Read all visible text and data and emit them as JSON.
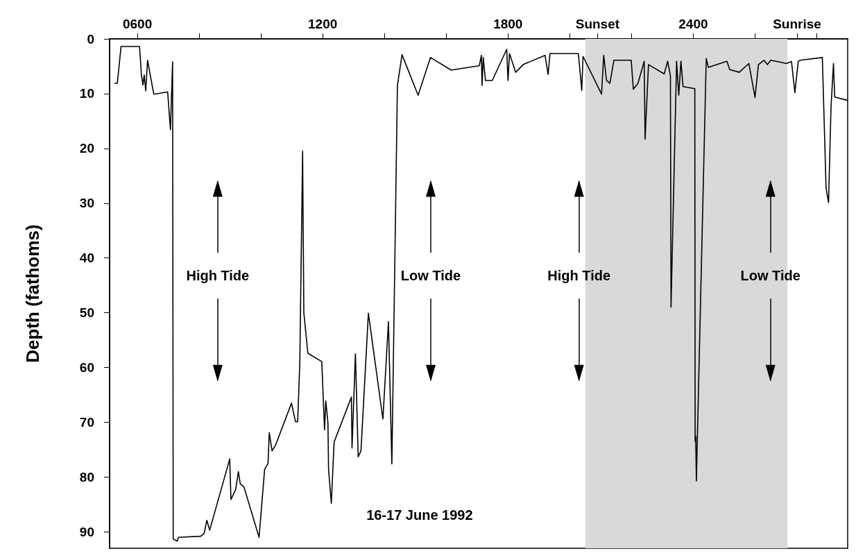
{
  "chart_data": {
    "type": "line",
    "ylabel": "Depth (fathoms)",
    "xlim": [
      510,
      2900
    ],
    "xticks": [
      {
        "value": 600,
        "label": "0600"
      },
      {
        "value": 800,
        "label": null
      },
      {
        "value": 1000,
        "label": null
      },
      {
        "value": 1200,
        "label": "1200"
      },
      {
        "value": 1400,
        "label": null
      },
      {
        "value": 1600,
        "label": null
      },
      {
        "value": 1800,
        "label": "1800"
      },
      {
        "value": 2000,
        "label": null
      },
      {
        "value": 2090,
        "label": "Sunset"
      },
      {
        "value": 2200,
        "label": null
      },
      {
        "value": 2400,
        "label": "2400"
      },
      {
        "value": 2600,
        "label": null
      },
      {
        "value": 2736,
        "label": "Sunrise"
      },
      {
        "value": 2800,
        "label": null
      }
    ],
    "ylim": [
      93,
      0
    ],
    "yticks": [
      0,
      10,
      20,
      30,
      40,
      50,
      60,
      70,
      80,
      90
    ],
    "series": [
      {
        "color": "#000000",
        "x": [
          527,
          535,
          547,
          607,
          613,
          618,
          622,
          627,
          633,
          638,
          653,
          698,
          707,
          714,
          716,
          729,
          733,
          805,
          816,
          825,
          834,
          899,
          903,
          918,
          927,
          933,
          945,
          994,
          1012,
          1023,
          1027,
          1036,
          1048,
          1099,
          1112,
          1119,
          1126,
          1135,
          1137,
          1139,
          1152,
          1197,
          1206,
          1210,
          1217,
          1219,
          1228,
          1237,
          1293,
          1295,
          1306,
          1315,
          1324,
          1348,
          1395,
          1413,
          1424,
          1442,
          1457,
          1509,
          1549,
          1616,
          1707,
          1714,
          1716,
          1720,
          1727,
          1749,
          1796,
          1800,
          1805,
          1825,
          1849,
          1920,
          1930,
          1936,
          2028,
          2039,
          2043,
          2103,
          2110,
          2119,
          2130,
          2143,
          2199,
          2206,
          2221,
          2241,
          2244,
          2255,
          2306,
          2317,
          2326,
          2328,
          2346,
          2353,
          2360,
          2367,
          2405,
          2406,
          2408,
          2410,
          2442,
          2449,
          2509,
          2518,
          2549,
          2580,
          2600,
          2611,
          2629,
          2640,
          2651,
          2702,
          2718,
          2729,
          2740,
          2747,
          2818,
          2830,
          2838,
          2846,
          2854,
          2858,
          2898
        ],
        "values": [
          8.1,
          8.1,
          1.4,
          1.4,
          6.6,
          8.4,
          6.6,
          9.5,
          3.9,
          5.5,
          10.1,
          9.7,
          16.6,
          4.2,
          91.3,
          91.7,
          91.0,
          90.8,
          90.3,
          87.9,
          89.7,
          76.7,
          84.1,
          82.3,
          79.0,
          81.2,
          81.8,
          91.0,
          78.6,
          77.5,
          71.9,
          75.2,
          74.1,
          66.5,
          69.9,
          69.9,
          58.9,
          20.5,
          36,
          50,
          57.4,
          58.9,
          71.4,
          66.1,
          70.1,
          78.6,
          84.8,
          73.6,
          65.4,
          74.7,
          57.5,
          76.3,
          75.2,
          50.1,
          69.4,
          51.6,
          77.6,
          8.5,
          2.9,
          10.3,
          3.4,
          5.7,
          4.9,
          3.0,
          8.5,
          3.4,
          7.6,
          7.6,
          1.9,
          7.6,
          2.7,
          6.1,
          4.7,
          3.0,
          6.5,
          2.7,
          2.7,
          9.4,
          3.2,
          10.1,
          3.0,
          7.6,
          8.1,
          3.9,
          3.9,
          9.2,
          8.1,
          4.1,
          18.3,
          4.7,
          6.4,
          4.1,
          6.7,
          49,
          4.1,
          10.3,
          4.1,
          8.7,
          9.1,
          73.5,
          72.5,
          80.7,
          3.6,
          5.2,
          4.1,
          5.6,
          6.1,
          4.5,
          10.7,
          4.7,
          3.9,
          4.7,
          3.9,
          4.5,
          4.1,
          9.8,
          4.1,
          3.9,
          3.4,
          27.2,
          29.9,
          12.6,
          4.5,
          10.6,
          11.2
        ]
      }
    ],
    "bands": [
      {
        "axis": "x",
        "from": 2050,
        "to": 2705,
        "color": "#d9d9d9"
      }
    ],
    "ref_lines": [
      {
        "axis": "x",
        "value": 860,
        "label": "High Tide"
      },
      {
        "axis": "x",
        "value": 1550,
        "label": "Low Tide"
      },
      {
        "axis": "x",
        "value": 2030,
        "label": "High Tide"
      },
      {
        "axis": "x",
        "value": 2650,
        "label": "Low Tide"
      }
    ],
    "annotations": [
      "16-17 June 1992"
    ]
  }
}
